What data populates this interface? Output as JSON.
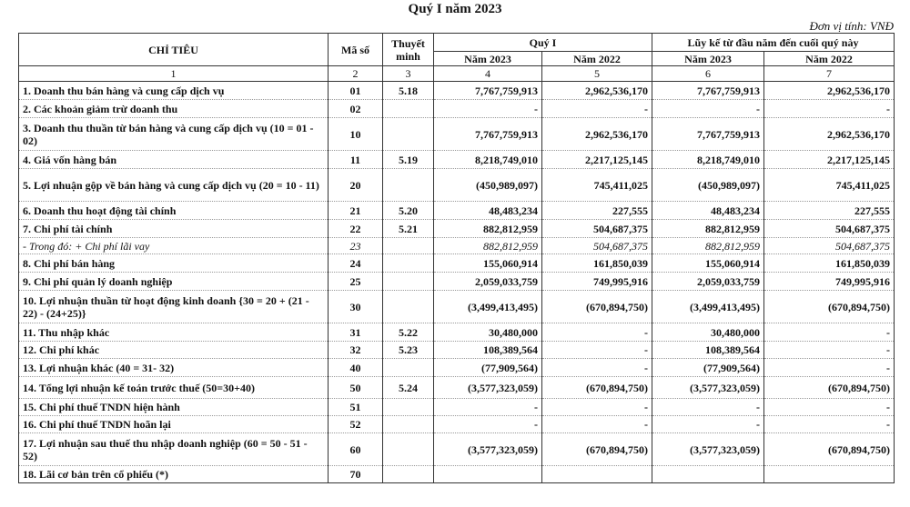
{
  "title": "Quý I năm 2023",
  "unit": "Đơn vị tính: VNĐ",
  "header": {
    "chi_tieu": "CHỈ TIÊU",
    "ma_so": "Mã số",
    "thuyet_minh": "Thuyết minh",
    "quy_i": "Quý I",
    "luy_ke": "Lũy kế từ đầu năm đến cuối quý này",
    "nam_2023": "Năm 2023",
    "nam_2022": "Năm 2022",
    "col_nums": [
      "1",
      "2",
      "3",
      "4",
      "5",
      "6",
      "7"
    ]
  },
  "rows": [
    {
      "name": "1. Doanh thu bán hàng và cung cấp dịch vụ",
      "code": "01",
      "note": "5.18",
      "q23": "7,767,759,913",
      "q22": "2,962,536,170",
      "c23": "7,767,759,913",
      "c22": "2,962,536,170",
      "style": "b"
    },
    {
      "name": "2. Các khoản giảm trừ doanh thu",
      "code": "02",
      "note": "",
      "q23": "-",
      "q22": "-",
      "c23": "-",
      "c22": "-",
      "style": "b"
    },
    {
      "name": "3. Doanh thu thuần từ bán hàng và cung cấp dịch vụ (10 = 01 - 02)",
      "code": "10",
      "note": "",
      "q23": "7,767,759,913",
      "q22": "2,962,536,170",
      "c23": "7,767,759,913",
      "c22": "2,962,536,170",
      "style": "b"
    },
    {
      "name": "4. Giá vốn hàng bán",
      "code": "11",
      "note": "5.19",
      "q23": "8,218,749,010",
      "q22": "2,217,125,145",
      "c23": "8,218,749,010",
      "c22": "2,217,125,145",
      "style": "b"
    },
    {
      "name": "5. Lợi nhuận gộp về bán hàng và cung cấp dịch vụ (20 = 10 - 11)",
      "code": "20",
      "note": "",
      "q23": "(450,989,097)",
      "q22": "745,411,025",
      "c23": "(450,989,097)",
      "c22": "745,411,025",
      "style": "b"
    },
    {
      "name": "6. Doanh thu hoạt động tài chính",
      "code": "21",
      "note": "5.20",
      "q23": "48,483,234",
      "q22": "227,555",
      "c23": "48,483,234",
      "c22": "227,555",
      "style": "b"
    },
    {
      "name": "7. Chi phí tài chính",
      "code": "22",
      "note": "5.21",
      "q23": "882,812,959",
      "q22": "504,687,375",
      "c23": "882,812,959",
      "c22": "504,687,375",
      "style": "b"
    },
    {
      "name": "- Trong đó: + Chi phí lãi vay",
      "code": "23",
      "note": "",
      "q23": "882,812,959",
      "q22": "504,687,375",
      "c23": "882,812,959",
      "c22": "504,687,375",
      "style": "i"
    },
    {
      "name": "8. Chi phí bán hàng",
      "code": "24",
      "note": "",
      "q23": "155,060,914",
      "q22": "161,850,039",
      "c23": "155,060,914",
      "c22": "161,850,039",
      "style": "b"
    },
    {
      "name": "9. Chi phí quản lý doanh nghiệp",
      "code": "25",
      "note": "",
      "q23": "2,059,033,759",
      "q22": "749,995,916",
      "c23": "2,059,033,759",
      "c22": "749,995,916",
      "style": "b"
    },
    {
      "name": "10. Lợi nhuận thuần từ hoạt động kinh doanh {30 = 20 + (21 - 22) - (24+25)}",
      "code": "30",
      "note": "",
      "q23": "(3,499,413,495)",
      "q22": "(670,894,750)",
      "c23": "(3,499,413,495)",
      "c22": "(670,894,750)",
      "style": "b"
    },
    {
      "name": "11. Thu nhập khác",
      "code": "31",
      "note": "5.22",
      "q23": "30,480,000",
      "q22": "-",
      "c23": "30,480,000",
      "c22": "-",
      "style": "b"
    },
    {
      "name": "12. Chi phí khác",
      "code": "32",
      "note": "5.23",
      "q23": "108,389,564",
      "q22": "-",
      "c23": "108,389,564",
      "c22": "-",
      "style": "b"
    },
    {
      "name": "13. Lợi nhuận khác (40 = 31- 32)",
      "code": "40",
      "note": "",
      "q23": "(77,909,564)",
      "q22": "-",
      "c23": "(77,909,564)",
      "c22": "-",
      "style": "b"
    },
    {
      "name": "14. Tổng lợi nhuận kế toán trước thuế (50=30+40)",
      "code": "50",
      "note": "5.24",
      "q23": "(3,577,323,059)",
      "q22": "(670,894,750)",
      "c23": "(3,577,323,059)",
      "c22": "(670,894,750)",
      "style": "b"
    },
    {
      "name": "15. Chi phí thuế TNDN hiện hành",
      "code": "51",
      "note": "",
      "q23": "-",
      "q22": "-",
      "c23": "-",
      "c22": "-",
      "style": "b"
    },
    {
      "name": "16. Chi phí thuế TNDN hoãn lại",
      "code": "52",
      "note": "",
      "q23": "-",
      "q22": "-",
      "c23": "-",
      "c22": "-",
      "style": "b"
    },
    {
      "name": "17. Lợi nhuận sau thuế thu nhập doanh nghiệp (60 = 50 - 51 - 52)",
      "code": "60",
      "note": "",
      "q23": "(3,577,323,059)",
      "q22": "(670,894,750)",
      "c23": "(3,577,323,059)",
      "c22": "(670,894,750)",
      "style": "b"
    },
    {
      "name": "18. Lãi cơ bản trên cổ phiếu (*)",
      "code": "70",
      "note": "",
      "q23": "",
      "q22": "",
      "c23": "",
      "c22": "",
      "style": "b"
    }
  ]
}
